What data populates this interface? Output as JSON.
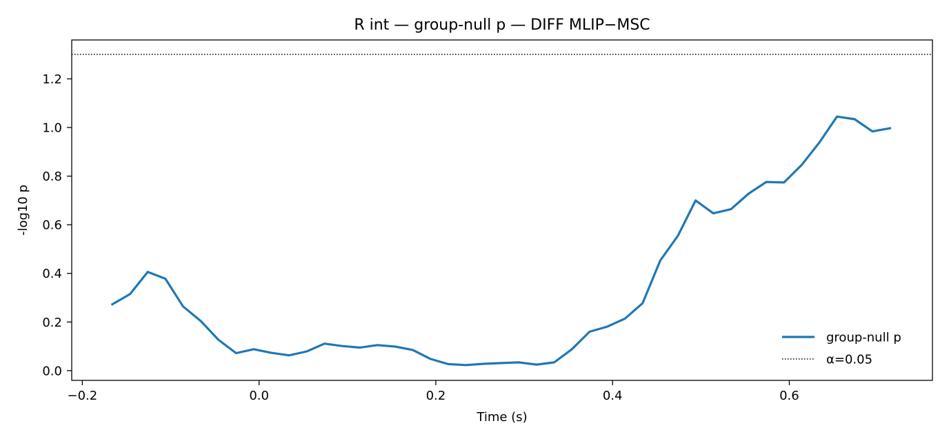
{
  "chart_data": {
    "type": "line",
    "title": "R int — group-null p — DIFF MLIP−MSC",
    "xlabel": "Time (s)",
    "ylabel": "-log10 p",
    "xlim": [
      -0.212,
      0.762
    ],
    "ylim": [
      -0.04,
      1.36
    ],
    "x_ticks": [
      -0.2,
      0.0,
      0.2,
      0.4,
      0.6
    ],
    "x_tick_labels": [
      "−0.2",
      "0.0",
      "0.2",
      "0.4",
      "0.6"
    ],
    "y_ticks": [
      0.0,
      0.2,
      0.4,
      0.6,
      0.8,
      1.0,
      1.2
    ],
    "y_tick_labels": [
      "0.0",
      "0.2",
      "0.4",
      "0.6",
      "0.8",
      "1.0",
      "1.2"
    ],
    "grid": false,
    "legend_position": "bottom-right",
    "series": [
      {
        "name": "group-null p",
        "color": "#1f77b4",
        "style": "solid",
        "x": [
          -0.166,
          -0.146,
          -0.126,
          -0.106,
          -0.086,
          -0.066,
          -0.046,
          -0.026,
          -0.006,
          0.014,
          0.034,
          0.054,
          0.074,
          0.094,
          0.114,
          0.134,
          0.154,
          0.174,
          0.194,
          0.214,
          0.234,
          0.254,
          0.274,
          0.294,
          0.314,
          0.334,
          0.354,
          0.374,
          0.394,
          0.414,
          0.434,
          0.454,
          0.474,
          0.494,
          0.514,
          0.534,
          0.554,
          0.574,
          0.594,
          0.614,
          0.634,
          0.654,
          0.674,
          0.694,
          0.714
        ],
        "y": [
          0.273,
          0.315,
          0.406,
          0.378,
          0.264,
          0.204,
          0.127,
          0.072,
          0.088,
          0.073,
          0.063,
          0.079,
          0.111,
          0.101,
          0.095,
          0.105,
          0.099,
          0.085,
          0.048,
          0.027,
          0.023,
          0.028,
          0.031,
          0.034,
          0.025,
          0.034,
          0.088,
          0.16,
          0.181,
          0.214,
          0.277,
          0.453,
          0.555,
          0.7,
          0.647,
          0.664,
          0.728,
          0.776,
          0.774,
          0.846,
          0.938,
          1.045,
          1.034,
          0.984,
          0.997
        ]
      },
      {
        "name": "α=0.05",
        "color": "#000000",
        "style": "dotted",
        "hline": 1.301
      }
    ]
  }
}
